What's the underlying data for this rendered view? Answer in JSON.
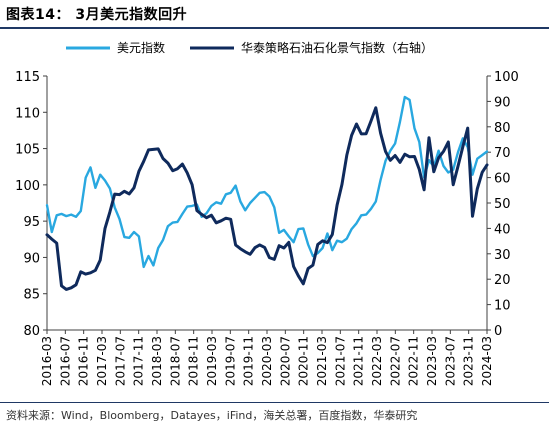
{
  "figure": {
    "title": "图表14： 3月美元指数回升",
    "source": "资料来源：Wind，Bloomberg，Datayes，iFind，海关总署，百度指数，华泰研究"
  },
  "colors": {
    "series1": "#29a8e0",
    "series2": "#0f2a5c",
    "axis": "#404040"
  },
  "chart_data": {
    "type": "line",
    "title": "",
    "xlabel": "",
    "ylabel": "",
    "y2label": "",
    "ylim": [
      80,
      115
    ],
    "y2lim": [
      0,
      100
    ],
    "yticks": [
      80,
      85,
      90,
      95,
      100,
      105,
      110,
      115
    ],
    "y2ticks": [
      0,
      10,
      20,
      30,
      40,
      50,
      60,
      70,
      80,
      90,
      100
    ],
    "legend_position": "top",
    "grid": false,
    "x_start": "2016-03",
    "x_end": "2024-03",
    "x_tick_labels": [
      "2016-03",
      "2016-07",
      "2016-11",
      "2017-03",
      "2017-07",
      "2017-11",
      "2018-03",
      "2018-07",
      "2018-11",
      "2019-03",
      "2019-07",
      "2019-11",
      "2020-03",
      "2020-07",
      "2020-11",
      "2021-03",
      "2021-07",
      "2021-11",
      "2022-03",
      "2022-07",
      "2022-11",
      "2023-03",
      "2023-07",
      "2023-11",
      "2024-03"
    ],
    "series": [
      {
        "name": "美元指数",
        "axis": "left",
        "values": [
          97.2,
          93.5,
          95.8,
          96.0,
          95.7,
          95.9,
          95.6,
          96.4,
          101.0,
          102.4,
          99.6,
          101.4,
          100.6,
          99.5,
          96.9,
          95.3,
          92.8,
          92.7,
          93.5,
          92.9,
          88.7,
          90.2,
          88.9,
          91.3,
          92.4,
          94.3,
          94.8,
          94.9,
          96.0,
          97.0,
          97.1,
          97.3,
          95.6,
          96.1,
          97.1,
          97.6,
          97.4,
          98.7,
          98.9,
          99.9,
          97.7,
          96.5,
          97.5,
          98.2,
          98.9,
          99.0,
          98.4,
          96.9,
          93.4,
          93.8,
          92.9,
          92.1,
          93.9,
          94.0,
          91.8,
          90.2,
          90.6,
          91.3,
          93.3,
          91.0,
          92.3,
          92.1,
          92.6,
          93.9,
          94.7,
          95.8,
          95.9,
          96.7,
          97.7,
          100.7,
          103.3,
          104.7,
          105.7,
          108.7,
          112.1,
          111.7,
          107.8,
          105.9,
          101.0,
          103.4,
          102.5,
          104.7,
          102.6,
          101.7,
          102.1,
          104.5,
          106.4,
          105.2,
          101.4,
          103.6,
          104.1,
          104.6
        ]
      },
      {
        "name": "华泰策略石油石化景气指数（右轴）",
        "axis": "right",
        "values": [
          37.5,
          35.8,
          34.2,
          17.4,
          16.0,
          16.6,
          17.8,
          22.9,
          22.0,
          22.5,
          23.5,
          27.5,
          40.0,
          46.5,
          53.5,
          53.3,
          54.6,
          53.6,
          56.0,
          62.5,
          66.4,
          70.9,
          71.1,
          71.3,
          67.5,
          65.7,
          62.7,
          63.5,
          65.3,
          61.9,
          57.2,
          47.0,
          45.5,
          44.2,
          45.2,
          42.2,
          43.0,
          44.0,
          43.6,
          33.5,
          32.0,
          30.8,
          29.8,
          32.4,
          33.5,
          32.5,
          28.5,
          27.8,
          33.2,
          32.3,
          34.5,
          25.0,
          21.3,
          18.2,
          24.2,
          25.5,
          33.7,
          35.1,
          34.4,
          37.6,
          49.2,
          57.2,
          68.8,
          76.6,
          81.1,
          77.2,
          77.3,
          82.3,
          87.5,
          77.5,
          70.3,
          66.8,
          68.7,
          66.0,
          69.2,
          68.2,
          68.3,
          63.2,
          55.2,
          75.7,
          62.3,
          67.8,
          70.3,
          74.0,
          57.2,
          64.5,
          72.1,
          79.5,
          44.8,
          55.6,
          62.1,
          65.0
        ]
      }
    ]
  }
}
